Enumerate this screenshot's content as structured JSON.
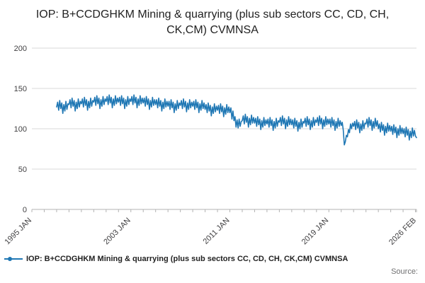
{
  "legend": {
    "label": "IOP: B+CCDGHKM Mining & quarrying (plus sub sectors CC, CD, CH, CK,CM) CVMNSA"
  },
  "footer": {
    "source": "Source:"
  },
  "colors": {
    "line": "#1f77b4",
    "grid": "#d9d9d9",
    "axis": "#b3b3b3",
    "tick_text": "#414042"
  },
  "chart_data": {
    "type": "line",
    "title": "IOP: B+CCDGHKM Mining & quarrying (plus sub sectors CC, CD, CH, CK,CM) CVMNSA",
    "xlabel": "",
    "ylabel": "",
    "ylim": [
      0,
      200
    ],
    "yticks": [
      0,
      50,
      100,
      150,
      200
    ],
    "grid": true,
    "legend_position": "bottom-left",
    "x_axis": {
      "start_label": "1995 JAN",
      "end_label": "2026 FEB",
      "months_total": 373,
      "year_tick_interval_months": 12
    },
    "xticks": [
      {
        "label": "1995 JAN",
        "month": 0
      },
      {
        "label": "2003 JAN",
        "month": 96
      },
      {
        "label": "2011 JAN",
        "month": 192
      },
      {
        "label": "2019 JAN",
        "month": 288
      },
      {
        "label": "2026 FEB",
        "month": 373
      }
    ],
    "series": [
      {
        "name": "IOP: B+CCDGHKM Mining & quarrying (plus sub sectors CC, CD, CH, CK,CM) CVMNSA",
        "color": "#1f77b4",
        "start_month": 24,
        "frequency": "monthly",
        "values": [
          127,
          133,
          123,
          135,
          125,
          132,
          119,
          130,
          122,
          134,
          124,
          131,
          130,
          136,
          126,
          138,
          128,
          135,
          122,
          133,
          125,
          137,
          127,
          134,
          131,
          137,
          127,
          139,
          129,
          136,
          123,
          134,
          126,
          138,
          128,
          135,
          133,
          139,
          129,
          141,
          131,
          138,
          125,
          136,
          128,
          140,
          130,
          137,
          134,
          140,
          130,
          142,
          132,
          139,
          126,
          137,
          129,
          141,
          131,
          138,
          133,
          139,
          129,
          141,
          131,
          138,
          125,
          136,
          128,
          140,
          130,
          137,
          134,
          140,
          130,
          142,
          132,
          139,
          126,
          137,
          129,
          141,
          131,
          138,
          132,
          138,
          128,
          140,
          130,
          137,
          124,
          135,
          127,
          139,
          129,
          136,
          130,
          136,
          126,
          138,
          128,
          135,
          122,
          133,
          125,
          137,
          127,
          134,
          128,
          134,
          124,
          136,
          126,
          133,
          120,
          131,
          123,
          135,
          125,
          132,
          129,
          135,
          125,
          137,
          127,
          134,
          121,
          132,
          124,
          136,
          126,
          133,
          128,
          134,
          124,
          136,
          126,
          133,
          120,
          131,
          123,
          135,
          125,
          132,
          124,
          130,
          120,
          132,
          122,
          129,
          116,
          127,
          119,
          131,
          121,
          128,
          123,
          129,
          119,
          131,
          121,
          128,
          115,
          126,
          118,
          130,
          120,
          127,
          120,
          126,
          112,
          122,
          110,
          115,
          102,
          111,
          101,
          112,
          103,
          109,
          110,
          116,
          106,
          118,
          108,
          115,
          102,
          113,
          105,
          117,
          107,
          114,
          107,
          113,
          103,
          115,
          105,
          112,
          99,
          110,
          102,
          114,
          104,
          111,
          106,
          112,
          102,
          114,
          104,
          111,
          98,
          109,
          101,
          113,
          103,
          110,
          108,
          114,
          104,
          116,
          106,
          113,
          100,
          111,
          103,
          115,
          105,
          112,
          105,
          111,
          101,
          113,
          103,
          110,
          97,
          108,
          100,
          112,
          102,
          109,
          107,
          113,
          103,
          115,
          105,
          112,
          99,
          110,
          102,
          114,
          104,
          111,
          108,
          114,
          104,
          116,
          106,
          113,
          100,
          111,
          103,
          115,
          105,
          112,
          106,
          112,
          102,
          114,
          104,
          111,
          98,
          109,
          101,
          113,
          103,
          110,
          104,
          108,
          98,
          80,
          84,
          92,
          90,
          99,
          95,
          106,
          100,
          107,
          103,
          109,
          99,
          111,
          101,
          108,
          95,
          106,
          98,
          110,
          100,
          107,
          106,
          112,
          102,
          114,
          104,
          111,
          98,
          109,
          101,
          113,
          103,
          110,
          100,
          106,
          96,
          108,
          98,
          105,
          92,
          103,
          95,
          107,
          97,
          104,
          97,
          103,
          93,
          105,
          95,
          102,
          89,
          100,
          92,
          104,
          94,
          101,
          94,
          100,
          90,
          102,
          92,
          99,
          86,
          97,
          89,
          101,
          91,
          98,
          91,
          89
        ]
      }
    ]
  }
}
